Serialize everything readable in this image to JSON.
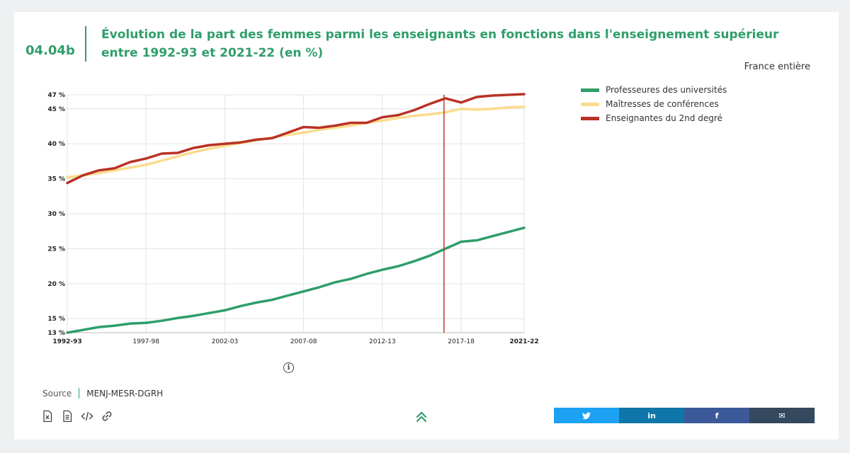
{
  "header": {
    "code": "04.04b",
    "title": "Évolution de la part des femmes parmi les enseignants en fonctions dans l'enseignement supérieur entre 1992-93 et 2021-22 (en %)",
    "region": "France entière"
  },
  "colors": {
    "accent": "#2f9e6b",
    "series_green": "#2e9e6a",
    "series_yellow": "#fbdc8e",
    "series_red": "#b83226",
    "marker_line": "#c0392b",
    "twitter": "#1da1f2",
    "linkedin": "#0e76a8",
    "facebook": "#3b5998",
    "email": "#34495e"
  },
  "chart_data": {
    "type": "line",
    "x": [
      "1992-93",
      "1993-94",
      "1994-95",
      "1995-96",
      "1996-97",
      "1997-98",
      "1998-99",
      "1999-00",
      "2000-01",
      "2001-02",
      "2002-03",
      "2003-04",
      "2004-05",
      "2005-06",
      "2006-07",
      "2007-08",
      "2008-09",
      "2009-10",
      "2010-11",
      "2011-12",
      "2012-13",
      "2013-14",
      "2014-15",
      "2015-16",
      "2016-17",
      "2017-18",
      "2018-19",
      "2019-20",
      "2020-21",
      "2021-22"
    ],
    "x_ticks": [
      "1992-93",
      "1997-98",
      "2002-03",
      "2007-08",
      "2012-13",
      "2017-18",
      "2021-22"
    ],
    "y_ticks": [
      {
        "value": 13,
        "label": "13 %"
      },
      {
        "value": 15,
        "label": "15 %"
      },
      {
        "value": 20,
        "label": "20 %"
      },
      {
        "value": 25,
        "label": "25 %"
      },
      {
        "value": 30,
        "label": "30 %"
      },
      {
        "value": 35,
        "label": "35 %"
      },
      {
        "value": 40,
        "label": "40 %"
      },
      {
        "value": 45,
        "label": "45 %"
      },
      {
        "value": 47,
        "label": "47 %"
      }
    ],
    "ylim": [
      13,
      47
    ],
    "vertical_marker_x": "2016-17",
    "series": [
      {
        "name": "Professeures des universités",
        "values": [
          13.0,
          13.4,
          13.8,
          14.0,
          14.3,
          14.4,
          14.7,
          15.1,
          15.4,
          15.8,
          16.2,
          16.8,
          17.3,
          17.7,
          18.3,
          18.9,
          19.5,
          20.2,
          20.7,
          21.4,
          22.0,
          22.5,
          23.2,
          24.0,
          25.0,
          26.0,
          26.2,
          26.8,
          27.4,
          28.0
        ]
      },
      {
        "name": "Maîtresses de conférences",
        "values": [
          35.2,
          35.5,
          35.8,
          36.2,
          36.6,
          37.0,
          37.6,
          38.2,
          38.8,
          39.3,
          39.7,
          40.1,
          40.5,
          40.9,
          41.3,
          41.6,
          42.0,
          42.3,
          42.6,
          43.0,
          43.3,
          43.7,
          44.0,
          44.2,
          44.5,
          45.0,
          44.9,
          45.0,
          45.2,
          45.3
        ]
      },
      {
        "name": "Enseignantes du 2nd degré",
        "values": [
          34.4,
          35.5,
          36.2,
          36.5,
          37.4,
          37.9,
          38.6,
          38.7,
          39.4,
          39.8,
          40.0,
          40.2,
          40.6,
          40.8,
          41.6,
          42.4,
          42.3,
          42.6,
          43.0,
          43.0,
          43.8,
          44.1,
          44.8,
          45.7,
          46.5,
          45.9,
          46.7,
          46.9,
          47.0,
          47.1
        ]
      }
    ]
  },
  "source": {
    "label": "Source",
    "value": "MENJ-MESR-DGRH"
  },
  "tools": [
    "excel-file-icon",
    "document-icon",
    "embed-code-icon",
    "link-icon"
  ],
  "share": {
    "twitter_label": "🐦",
    "linkedin_label": "in",
    "facebook_label": "f",
    "email_label": "✉"
  }
}
